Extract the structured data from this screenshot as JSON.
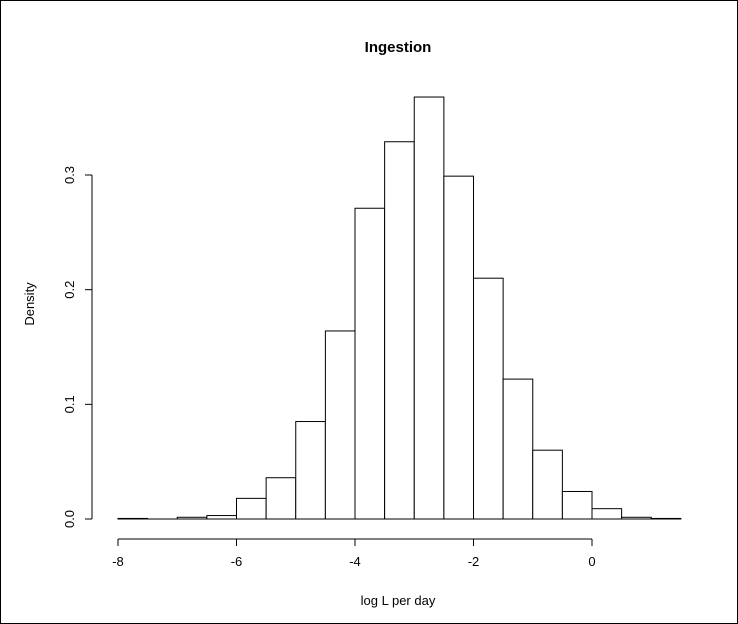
{
  "chart_data": {
    "type": "bar",
    "title": "Ingestion",
    "xlabel": "log L per day",
    "ylabel": "Density",
    "xlim": [
      -8,
      1.5
    ],
    "ylim": [
      0,
      0.368
    ],
    "bin_width": 0.5,
    "x_ticks": [
      -8,
      -6,
      -4,
      -2,
      0
    ],
    "x_tick_labels": [
      "-8",
      "-6",
      "-4",
      "-2",
      "0"
    ],
    "y_ticks": [
      0.0,
      0.1,
      0.2,
      0.3
    ],
    "y_tick_labels": [
      "0.0",
      "0.1",
      "0.2",
      "0.3"
    ],
    "grid": false,
    "legend": "none",
    "bins": [
      {
        "left": -8.0,
        "right": -7.5,
        "density": 0.0005
      },
      {
        "left": -7.5,
        "right": -7.0,
        "density": 0.0
      },
      {
        "left": -7.0,
        "right": -6.5,
        "density": 0.0015
      },
      {
        "left": -6.5,
        "right": -6.0,
        "density": 0.003
      },
      {
        "left": -6.0,
        "right": -5.5,
        "density": 0.018
      },
      {
        "left": -5.5,
        "right": -5.0,
        "density": 0.036
      },
      {
        "left": -5.0,
        "right": -4.5,
        "density": 0.085
      },
      {
        "left": -4.5,
        "right": -4.0,
        "density": 0.164
      },
      {
        "left": -4.0,
        "right": -3.5,
        "density": 0.271
      },
      {
        "left": -3.5,
        "right": -3.0,
        "density": 0.329
      },
      {
        "left": -3.0,
        "right": -2.5,
        "density": 0.368
      },
      {
        "left": -2.5,
        "right": -2.0,
        "density": 0.299
      },
      {
        "left": -2.0,
        "right": -1.5,
        "density": 0.21
      },
      {
        "left": -1.5,
        "right": -1.0,
        "density": 0.122
      },
      {
        "left": -1.0,
        "right": -0.5,
        "density": 0.06
      },
      {
        "left": -0.5,
        "right": 0.0,
        "density": 0.024
      },
      {
        "left": 0.0,
        "right": 0.5,
        "density": 0.009
      },
      {
        "left": 0.5,
        "right": 1.0,
        "density": 0.0015
      },
      {
        "left": 1.0,
        "right": 1.5,
        "density": 0.0005
      }
    ],
    "colors": {
      "bar_fill": "#ffffff",
      "bar_stroke": "#000000",
      "axis": "#000000"
    }
  }
}
